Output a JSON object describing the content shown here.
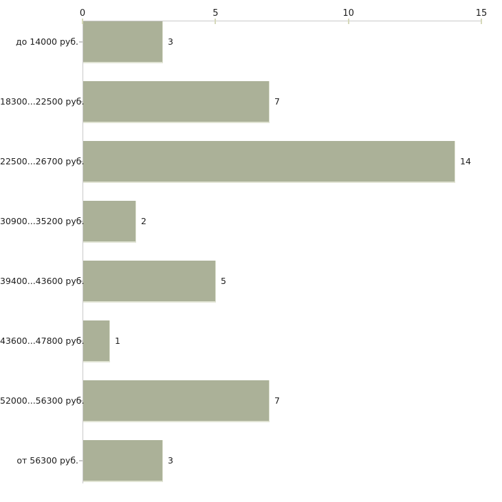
{
  "chart_data": {
    "type": "bar",
    "orientation": "horizontal",
    "categories": [
      "до 14000 руб.",
      "18300...22500 руб.",
      "22500...26700 руб.",
      "30900...35200 руб.",
      "39400...43600 руб.",
      "43600...47800 руб.",
      "52000...56300 руб.",
      "от 56300 руб."
    ],
    "values": [
      3,
      7,
      14,
      2,
      5,
      1,
      7,
      3
    ],
    "value_labels": [
      "3",
      "7",
      "14",
      "2",
      "5",
      "1",
      "7",
      "3"
    ],
    "xlim": [
      0,
      15
    ],
    "xticks": [
      "0",
      "5",
      "10",
      "15"
    ],
    "xtick_values": [
      0,
      5,
      10,
      15
    ],
    "grid": false,
    "data_labels_shown": true,
    "colors": {
      "bar_fill": "#abb198",
      "bar_edge": "#e0e3d3",
      "axis_line": "#c9c9c9",
      "axis_tick": "#d5d8b9",
      "text": "#1c1c1c",
      "background": "#ffffff"
    }
  }
}
